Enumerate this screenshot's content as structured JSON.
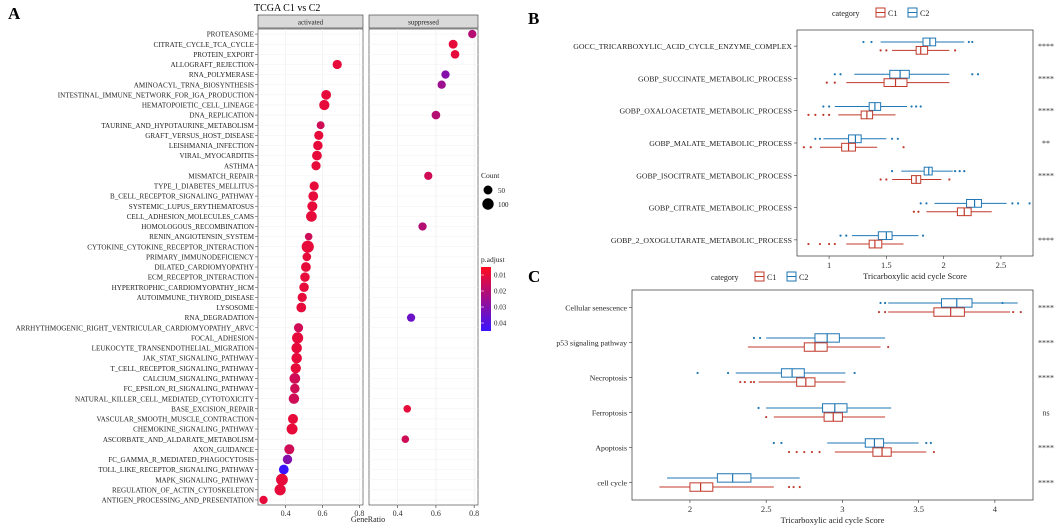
{
  "panels": {
    "A": "A",
    "B": "B",
    "C": "C"
  },
  "chart_data": [
    {
      "id": "A",
      "type": "scatter",
      "title": "TCGA C1 vs C2",
      "facets": [
        "activated",
        "suppressed"
      ],
      "xlabel": "GeneRatio",
      "xticks": [
        0.4,
        0.6,
        0.8
      ],
      "xlim": [
        0.25,
        0.82
      ],
      "legend": {
        "size_title": "Count",
        "size_labels": [
          "50",
          "100"
        ],
        "color_title": "p.adjust",
        "color_labels": [
          "0.01",
          "0.02",
          "0.03",
          "0.04"
        ]
      },
      "categories": [
        "PROTEASOME",
        "CITRATE_CYCLE_TCA_CYCLE",
        "PROTEIN_EXPORT",
        "ALLOGRAFT_REJECTION",
        "RNA_POLYMERASE",
        "AMINOACYL_TRNA_BIOSYNTHESIS",
        "INTESTINAL_IMMUNE_NETWORK_FOR_IGA_PRODUCTION",
        "HEMATOPOIETIC_CELL_LINEAGE",
        "DNA_REPLICATION",
        "TAURINE_AND_HYPOTAURINE_METABOLISM",
        "GRAFT_VERSUS_HOST_DISEASE",
        "LEISHMANIA_INFECTION",
        "VIRAL_MYOCARDITIS",
        "ASTHMA",
        "MISMATCH_REPAIR",
        "TYPE_I_DIABETES_MELLITUS",
        "B_CELL_RECEPTOR_SIGNALING_PATHWAY",
        "SYSTEMIC_LUPUS_ERYTHEMATOSUS",
        "CELL_ADHESION_MOLECULES_CAMS",
        "HOMOLOGOUS_RECOMBINATION",
        "RENIN_ANGIOTENSIN_SYSTEM",
        "CYTOKINE_CYTOKINE_RECEPTOR_INTERACTION",
        "PRIMARY_IMMUNODEFICIENCY",
        "DILATED_CARDIOMYOPATHY",
        "ECM_RECEPTOR_INTERACTION",
        "HYPERTROPHIC_CARDIOMYOPATHY_HCM",
        "AUTOIMMUNE_THYROID_DISEASE",
        "LYSOSOME",
        "RNA_DEGRADATION",
        "ARRHYTHMOGENIC_RIGHT_VENTRICULAR_CARDIOMYOPATHY_ARVC",
        "FOCAL_ADHESION",
        "LEUKOCYTE_TRANSENDOTHELIAL_MIGRATION",
        "JAK_STAT_SIGNALING_PATHWAY",
        "T_CELL_RECEPTOR_SIGNALING_PATHWAY",
        "CALCIUM_SIGNALING_PATHWAY",
        "FC_EPSILON_RI_SIGNALING_PATHWAY",
        "NATURAL_KILLER_CELL_MEDIATED_CYTOTOXICITY",
        "BASE_EXCISION_REPAIR",
        "VASCULAR_SMOOTH_MUSCLE_CONTRACTION",
        "CHEMOKINE_SIGNALING_PATHWAY",
        "ASCORBATE_AND_ALDARATE_METABOLISM",
        "AXON_GUIDANCE",
        "FC_GAMMA_R_MEDIATED_PHAGOCYTOSIS",
        "TOLL_LIKE_RECEPTOR_SIGNALING_PATHWAY",
        "MAPK_SIGNALING_PATHWAY",
        "REGULATION_OF_ACTIN_CYTOSKELETON",
        "ANTIGEN_PROCESSING_AND_PRESENTATION"
      ],
      "points": [
        {
          "facet": "suppressed",
          "x": 0.79,
          "count": 40,
          "padj": 0.02
        },
        {
          "facet": "suppressed",
          "x": 0.69,
          "count": 50,
          "padj": 0.01
        },
        {
          "facet": "suppressed",
          "x": 0.7,
          "count": 45,
          "padj": 0.01
        },
        {
          "facet": "activated",
          "x": 0.68,
          "count": 55,
          "padj": 0.01
        },
        {
          "facet": "suppressed",
          "x": 0.65,
          "count": 40,
          "padj": 0.03
        },
        {
          "facet": "suppressed",
          "x": 0.63,
          "count": 40,
          "padj": 0.025
        },
        {
          "facet": "activated",
          "x": 0.62,
          "count": 65,
          "padj": 0.01
        },
        {
          "facet": "activated",
          "x": 0.61,
          "count": 75,
          "padj": 0.01
        },
        {
          "facet": "suppressed",
          "x": 0.6,
          "count": 45,
          "padj": 0.02
        },
        {
          "facet": "activated",
          "x": 0.59,
          "count": 35,
          "padj": 0.015
        },
        {
          "facet": "activated",
          "x": 0.58,
          "count": 55,
          "padj": 0.01
        },
        {
          "facet": "activated",
          "x": 0.575,
          "count": 60,
          "padj": 0.01
        },
        {
          "facet": "activated",
          "x": 0.57,
          "count": 65,
          "padj": 0.01
        },
        {
          "facet": "activated",
          "x": 0.565,
          "count": 55,
          "padj": 0.01
        },
        {
          "facet": "suppressed",
          "x": 0.56,
          "count": 40,
          "padj": 0.015
        },
        {
          "facet": "activated",
          "x": 0.555,
          "count": 55,
          "padj": 0.01
        },
        {
          "facet": "activated",
          "x": 0.55,
          "count": 65,
          "padj": 0.01
        },
        {
          "facet": "activated",
          "x": 0.545,
          "count": 70,
          "padj": 0.01
        },
        {
          "facet": "activated",
          "x": 0.54,
          "count": 85,
          "padj": 0.01
        },
        {
          "facet": "suppressed",
          "x": 0.53,
          "count": 40,
          "padj": 0.02
        },
        {
          "facet": "activated",
          "x": 0.525,
          "count": 30,
          "padj": 0.015
        },
        {
          "facet": "activated",
          "x": 0.52,
          "count": 120,
          "padj": 0.01
        },
        {
          "facet": "activated",
          "x": 0.515,
          "count": 45,
          "padj": 0.01
        },
        {
          "facet": "activated",
          "x": 0.51,
          "count": 65,
          "padj": 0.01
        },
        {
          "facet": "activated",
          "x": 0.505,
          "count": 60,
          "padj": 0.01
        },
        {
          "facet": "activated",
          "x": 0.5,
          "count": 60,
          "padj": 0.01
        },
        {
          "facet": "activated",
          "x": 0.49,
          "count": 55,
          "padj": 0.01
        },
        {
          "facet": "activated",
          "x": 0.485,
          "count": 65,
          "padj": 0.01
        },
        {
          "facet": "suppressed",
          "x": 0.47,
          "count": 40,
          "padj": 0.035
        },
        {
          "facet": "activated",
          "x": 0.47,
          "count": 55,
          "padj": 0.015
        },
        {
          "facet": "activated",
          "x": 0.465,
          "count": 95,
          "padj": 0.01
        },
        {
          "facet": "activated",
          "x": 0.46,
          "count": 80,
          "padj": 0.01
        },
        {
          "facet": "activated",
          "x": 0.46,
          "count": 80,
          "padj": 0.01
        },
        {
          "facet": "activated",
          "x": 0.455,
          "count": 75,
          "padj": 0.01
        },
        {
          "facet": "activated",
          "x": 0.45,
          "count": 85,
          "padj": 0.015
        },
        {
          "facet": "activated",
          "x": 0.45,
          "count": 60,
          "padj": 0.015
        },
        {
          "facet": "activated",
          "x": 0.445,
          "count": 80,
          "padj": 0.015
        },
        {
          "facet": "suppressed",
          "x": 0.45,
          "count": 30,
          "padj": 0.01
        },
        {
          "facet": "activated",
          "x": 0.44,
          "count": 70,
          "padj": 0.01
        },
        {
          "facet": "activated",
          "x": 0.435,
          "count": 90,
          "padj": 0.01
        },
        {
          "facet": "suppressed",
          "x": 0.44,
          "count": 30,
          "padj": 0.015
        },
        {
          "facet": "activated",
          "x": 0.42,
          "count": 70,
          "padj": 0.015
        },
        {
          "facet": "activated",
          "x": 0.41,
          "count": 60,
          "padj": 0.03
        },
        {
          "facet": "activated",
          "x": 0.39,
          "count": 65,
          "padj": 0.045
        },
        {
          "facet": "activated",
          "x": 0.38,
          "count": 110,
          "padj": 0.01
        },
        {
          "facet": "activated",
          "x": 0.37,
          "count": 95,
          "padj": 0.01
        },
        {
          "facet": "activated",
          "x": 0.28,
          "count": 40,
          "padj": 0.01
        }
      ]
    },
    {
      "id": "B",
      "type": "boxplot",
      "legend": {
        "title": "category",
        "entries": [
          "C1",
          "C2"
        ]
      },
      "colors": {
        "C1": "#c0392b",
        "C2": "#1f77b4"
      },
      "xlabel": "Tricarboxylic acid cycle Score",
      "xticks": [
        1.0,
        1.5,
        2.0,
        2.5
      ],
      "xlim": [
        0.72,
        2.78
      ],
      "categories": [
        "GOCC_TRICARBOXYLIC_ACID_CYCLE_ENZYME_COMPLEX",
        "GOBP_SUCCINATE_METABOLIC_PROCESS",
        "GOBP_OXALOACETATE_METABOLIC_PROCESS",
        "GOBP_MALATE_METABOLIC_PROCESS",
        "GOBP_ISOCITRATE_METABOLIC_PROCESS",
        "GOBP_CITRATE_METABOLIC_PROCESS",
        "GOBP_2_OXOGLUTARATE_METABOLIC_PROCESS"
      ],
      "significance": [
        "****",
        "****",
        "****",
        "**",
        "****",
        "",
        "****"
      ],
      "series": [
        {
          "name": "C2",
          "boxes": [
            {
              "wmin": 1.45,
              "q1": 1.82,
              "med": 1.88,
              "q3": 1.93,
              "wmax": 2.18,
              "outliers": [
                1.3,
                1.37,
                2.22,
                2.25
              ]
            },
            {
              "wmin": 1.22,
              "q1": 1.53,
              "med": 1.62,
              "q3": 1.7,
              "wmax": 2.05,
              "outliers": [
                1.05,
                1.1,
                2.25,
                2.3
              ]
            },
            {
              "wmin": 1.05,
              "q1": 1.35,
              "med": 1.4,
              "q3": 1.45,
              "wmax": 1.68,
              "outliers": [
                0.95,
                1.0,
                1.72,
                1.76,
                1.8
              ]
            },
            {
              "wmin": 0.95,
              "q1": 1.17,
              "med": 1.23,
              "q3": 1.28,
              "wmax": 1.5,
              "outliers": [
                0.88,
                0.92,
                1.55,
                1.6
              ]
            },
            {
              "wmin": 1.63,
              "q1": 1.83,
              "med": 1.87,
              "q3": 1.9,
              "wmax": 2.08,
              "outliers": [
                1.55,
                2.1,
                2.14,
                2.18
              ]
            },
            {
              "wmin": 1.92,
              "q1": 2.2,
              "med": 2.27,
              "q3": 2.33,
              "wmax": 2.55,
              "outliers": [
                1.8,
                1.85,
                2.6,
                2.65,
                2.75
              ]
            },
            {
              "wmin": 1.2,
              "q1": 1.43,
              "med": 1.5,
              "q3": 1.55,
              "wmax": 1.78,
              "outliers": [
                1.1,
                1.15,
                1.82
              ]
            }
          ]
        },
        {
          "name": "C1",
          "boxes": [
            {
              "wmin": 1.55,
              "q1": 1.76,
              "med": 1.8,
              "q3": 1.86,
              "wmax": 2.05,
              "outliers": [
                1.45,
                1.5,
                2.1
              ]
            },
            {
              "wmin": 1.15,
              "q1": 1.48,
              "med": 1.58,
              "q3": 1.68,
              "wmax": 2.05,
              "outliers": [
                0.98,
                1.05
              ]
            },
            {
              "wmin": 1.08,
              "q1": 1.28,
              "med": 1.33,
              "q3": 1.38,
              "wmax": 1.58,
              "outliers": [
                0.82,
                0.88,
                0.95,
                1.0
              ]
            },
            {
              "wmin": 0.92,
              "q1": 1.11,
              "med": 1.17,
              "q3": 1.23,
              "wmax": 1.42,
              "outliers": [
                0.78,
                0.84,
                1.65
              ]
            },
            {
              "wmin": 1.55,
              "q1": 1.72,
              "med": 1.76,
              "q3": 1.8,
              "wmax": 1.98,
              "outliers": [
                1.45,
                1.5,
                2.05
              ]
            },
            {
              "wmin": 1.85,
              "q1": 2.12,
              "med": 2.18,
              "q3": 2.24,
              "wmax": 2.42,
              "outliers": [
                1.74,
                1.78
              ]
            },
            {
              "wmin": 1.15,
              "q1": 1.35,
              "med": 1.4,
              "q3": 1.46,
              "wmax": 1.65,
              "outliers": [
                0.82,
                0.92,
                1.0,
                1.05
              ]
            }
          ]
        }
      ]
    },
    {
      "id": "C",
      "type": "boxplot",
      "legend": {
        "title": "category",
        "entries": [
          "C1",
          "C2"
        ]
      },
      "colors": {
        "C1": "#c0392b",
        "C2": "#1f77b4"
      },
      "xlabel": "Tricarboxylic acid cycle Score",
      "xticks": [
        2.0,
        2.5,
        3.0,
        3.5,
        4.0
      ],
      "xlim": [
        1.62,
        4.25
      ],
      "categories": [
        "Cellular senescence",
        "p53 signaling pathway",
        "Necroptosis",
        "Ferroptosis",
        "Apoptosis",
        "cell cycle"
      ],
      "significance": [
        "****",
        "****",
        "****",
        "ns",
        "****",
        "****"
      ],
      "series": [
        {
          "name": "C2",
          "boxes": [
            {
              "wmin": 3.3,
              "q1": 3.65,
              "med": 3.75,
              "q3": 3.85,
              "wmax": 4.15,
              "outliers": [
                3.25,
                3.28,
                4.05
              ]
            },
            {
              "wmin": 2.5,
              "q1": 2.82,
              "med": 2.9,
              "q3": 2.98,
              "wmax": 3.28,
              "outliers": [
                2.42,
                2.46
              ]
            },
            {
              "wmin": 2.3,
              "q1": 2.6,
              "med": 2.67,
              "q3": 2.75,
              "wmax": 3.02,
              "outliers": [
                2.05,
                2.25,
                3.08
              ]
            },
            {
              "wmin": 2.5,
              "q1": 2.87,
              "med": 2.95,
              "q3": 3.03,
              "wmax": 3.32,
              "outliers": [
                2.45
              ]
            },
            {
              "wmin": 2.9,
              "q1": 3.15,
              "med": 3.21,
              "q3": 3.27,
              "wmax": 3.5,
              "outliers": [
                2.55,
                2.6,
                3.55,
                3.58
              ]
            },
            {
              "wmin": 1.85,
              "q1": 2.18,
              "med": 2.28,
              "q3": 2.4,
              "wmax": 2.72,
              "outliers": []
            }
          ]
        },
        {
          "name": "C1",
          "boxes": [
            {
              "wmin": 3.3,
              "q1": 3.6,
              "med": 3.71,
              "q3": 3.8,
              "wmax": 4.1,
              "outliers": [
                3.24,
                3.28,
                4.12,
                4.17
              ]
            },
            {
              "wmin": 2.38,
              "q1": 2.75,
              "med": 2.82,
              "q3": 2.9,
              "wmax": 3.25,
              "outliers": [
                3.3
              ]
            },
            {
              "wmin": 2.45,
              "q1": 2.7,
              "med": 2.76,
              "q3": 2.82,
              "wmax": 3.02,
              "outliers": [
                2.33,
                2.36,
                2.4,
                2.42
              ]
            },
            {
              "wmin": 2.55,
              "q1": 2.88,
              "med": 2.94,
              "q3": 3.0,
              "wmax": 3.28,
              "outliers": [
                2.5
              ]
            },
            {
              "wmin": 2.95,
              "q1": 3.2,
              "med": 3.26,
              "q3": 3.32,
              "wmax": 3.55,
              "outliers": [
                2.65,
                2.7,
                2.75,
                2.8,
                2.85,
                3.6
              ]
            },
            {
              "wmin": 1.8,
              "q1": 2.0,
              "med": 2.07,
              "q3": 2.15,
              "wmax": 2.55,
              "outliers": [
                2.65,
                2.68,
                2.72
              ]
            }
          ]
        }
      ]
    }
  ]
}
